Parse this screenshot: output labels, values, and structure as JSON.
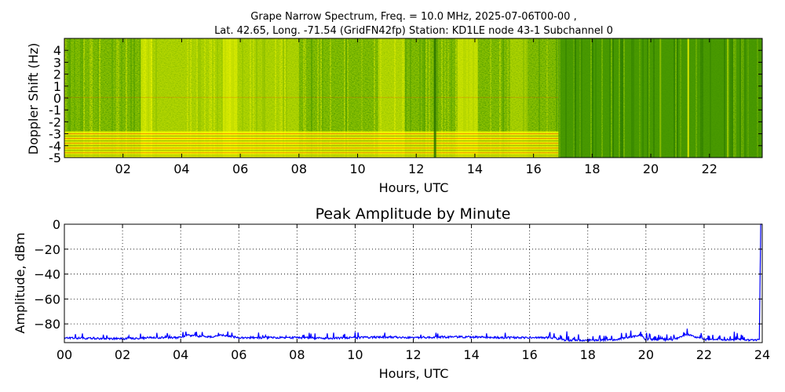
{
  "title_line1": "Grape Narrow Spectrum, Freq. = 10.0 MHz, 2025-07-06T00-00 ,",
  "title_line2": "Lat.  42.65, Long. -71.54 (GridFN42fp) Station: KD1LE node 43-1 Subchannel 0",
  "chart_data": [
    {
      "type": "heatmap",
      "title": "",
      "xlabel": "Hours, UTC",
      "ylabel": "Doppler Shift (Hz)",
      "xlim": [
        0,
        23.8
      ],
      "ylim": [
        -5,
        5
      ],
      "x_ticks": [
        "02",
        "04",
        "06",
        "08",
        "10",
        "12",
        "14",
        "16",
        "18",
        "20",
        "22"
      ],
      "x_tick_values": [
        2,
        4,
        6,
        8,
        10,
        12,
        14,
        16,
        18,
        20,
        22
      ],
      "y_ticks": [
        "4",
        "3",
        "2",
        "1",
        "0",
        "-1",
        "-2",
        "-3",
        "-4",
        "-5"
      ],
      "y_tick_values": [
        4,
        3,
        2,
        1,
        0,
        -1,
        -2,
        -3,
        -4,
        -5
      ],
      "colormap": [
        "#1f6b00",
        "#4a9a00",
        "#8fc400",
        "#d6e800",
        "#ffff00",
        "#ff3000"
      ],
      "regime_change_hour": 16.85,
      "notable_vertical_features_hours": [
        2.8,
        5.6,
        11.0,
        12.65,
        13.8,
        21.25
      ],
      "grid": false
    },
    {
      "type": "line",
      "title": "Peak Amplitude by Minute",
      "xlabel": "Hours, UTC",
      "ylabel": "Amplitude, dBm",
      "xlim": [
        0,
        24
      ],
      "ylim": [
        -95,
        0
      ],
      "x_ticks": [
        "00",
        "02",
        "04",
        "06",
        "08",
        "10",
        "12",
        "14",
        "16",
        "18",
        "20",
        "22",
        "24"
      ],
      "x_tick_values": [
        0,
        2,
        4,
        6,
        8,
        10,
        12,
        14,
        16,
        18,
        20,
        22,
        24
      ],
      "y_ticks": [
        "0",
        "−20",
        "−40",
        "−60",
        "−80"
      ],
      "y_tick_values": [
        0,
        -20,
        -40,
        -60,
        -80
      ],
      "grid": true,
      "series": [
        {
          "color": "#0000ff",
          "x": [
            0,
            1,
            2,
            3,
            4,
            4.2,
            5,
            5.4,
            6,
            7,
            8,
            9,
            10,
            11,
            12,
            13,
            14,
            15,
            16,
            16.8,
            17.2,
            18,
            19,
            19.8,
            20,
            21,
            21.4,
            22,
            23,
            23.9,
            23.95,
            24
          ],
          "y": [
            -91.5,
            -91.5,
            -92,
            -91,
            -91,
            -89,
            -90.5,
            -89,
            -91,
            -91,
            -91,
            -91.5,
            -91,
            -90.5,
            -91,
            -90.5,
            -90.5,
            -91,
            -91,
            -91,
            -93,
            -93,
            -92.5,
            -89,
            -92.5,
            -92.5,
            -88,
            -92.5,
            -92.5,
            -93,
            0,
            0
          ]
        }
      ]
    }
  ]
}
